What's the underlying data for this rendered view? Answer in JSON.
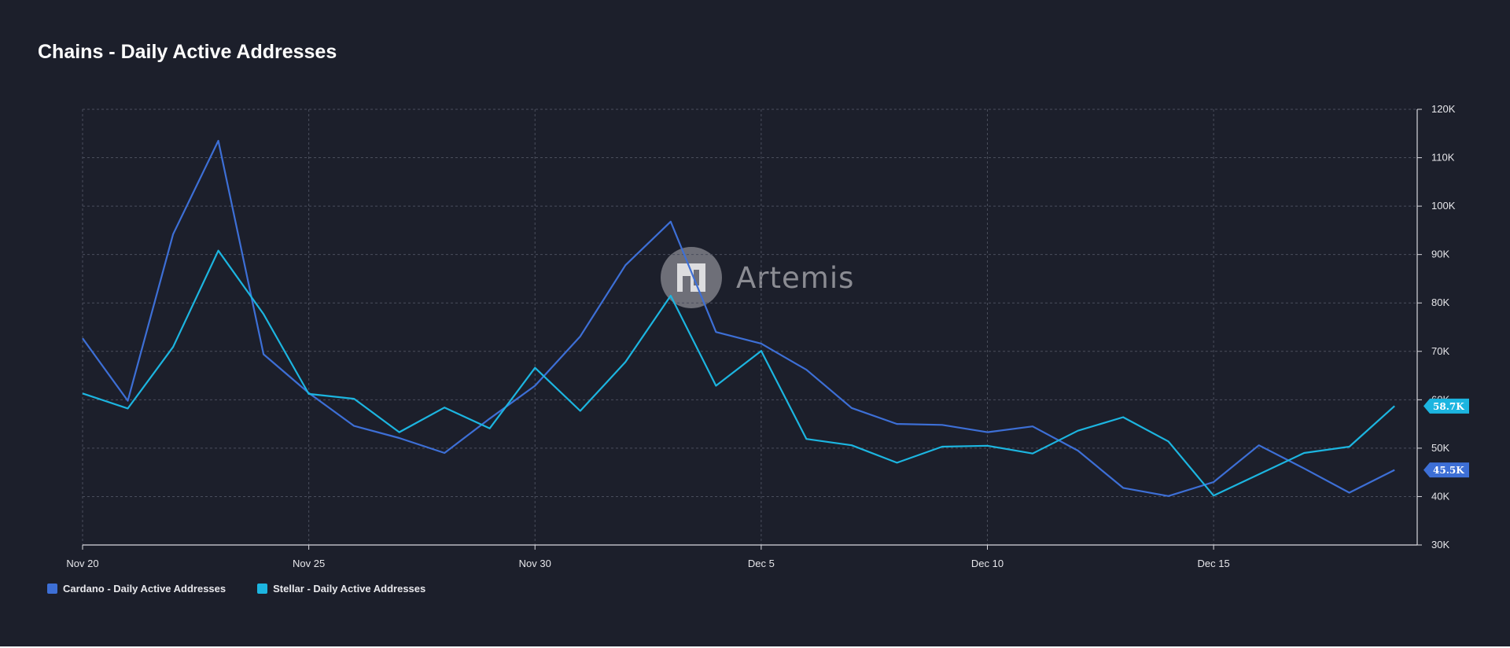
{
  "chart_data": {
    "type": "line",
    "title": "Chains - Daily Active Addresses",
    "xlabel": "",
    "ylabel": "",
    "x": [
      "Nov 20",
      "Nov 21",
      "Nov 22",
      "Nov 23",
      "Nov 24",
      "Nov 25",
      "Nov 26",
      "Nov 27",
      "Nov 28",
      "Nov 29",
      "Nov 30",
      "Dec 1",
      "Dec 2",
      "Dec 3",
      "Dec 4",
      "Dec 5",
      "Dec 6",
      "Dec 7",
      "Dec 8",
      "Dec 9",
      "Dec 10",
      "Dec 11",
      "Dec 12",
      "Dec 13",
      "Dec 14",
      "Dec 15",
      "Dec 16",
      "Dec 17",
      "Dec 18",
      "Dec 19"
    ],
    "x_tick_labels": [
      "Nov 20",
      "Nov 25",
      "Nov 30",
      "Dec 5",
      "Dec 10",
      "Dec 15"
    ],
    "y_tick_labels": [
      "120K",
      "110K",
      "100K",
      "90K",
      "80K",
      "70K",
      "60K",
      "50K",
      "40K",
      "30K"
    ],
    "ylim": [
      30000,
      120000
    ],
    "y_axis_position": "right",
    "grid": true,
    "legend_position": "bottom-left",
    "series": [
      {
        "name": "Cardano - Daily Active Addresses",
        "color": "#3d6fd6",
        "last_value_label": "45.5K",
        "values": [
          72700,
          59800,
          94200,
          113500,
          69400,
          61400,
          54600,
          52100,
          49000,
          56100,
          62900,
          73100,
          87800,
          96800,
          74000,
          71600,
          66200,
          58300,
          55000,
          54800,
          53300,
          54500,
          49500,
          41800,
          40100,
          43000,
          50600,
          45800,
          40800,
          45500
        ]
      },
      {
        "name": "Stellar - Daily Active Addresses",
        "color": "#1cb5e0",
        "last_value_label": "58.7K",
        "values": [
          61300,
          58200,
          70900,
          90800,
          77700,
          61200,
          60200,
          53300,
          58400,
          54100,
          66600,
          57700,
          67800,
          81500,
          62900,
          70100,
          51900,
          50600,
          47000,
          50300,
          50500,
          48900,
          53600,
          56400,
          51400,
          40200,
          44600,
          49000,
          50300,
          58700
        ]
      }
    ]
  },
  "watermark": {
    "text": "Artemis",
    "icon": "artemis-logo-icon"
  }
}
